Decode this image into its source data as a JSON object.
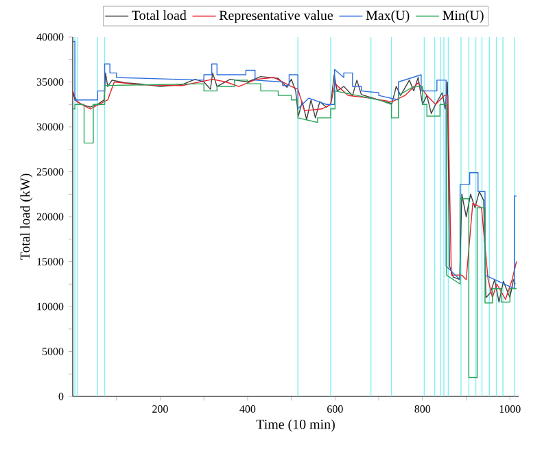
{
  "chart_data": {
    "type": "line",
    "xlabel": "Time (10 min)",
    "ylabel": "Total load (kW)",
    "xlim": [
      0,
      1020
    ],
    "ylim": [
      0,
      40000
    ],
    "xticks": [
      {
        "value": 100,
        "label": null
      },
      200,
      {
        "value": 300,
        "label": null
      },
      400,
      {
        "value": 500,
        "label": null
      },
      600,
      {
        "value": 700,
        "label": null
      },
      800,
      {
        "value": 900,
        "label": null
      },
      1000
    ],
    "yticks": [
      0,
      {
        "value": 2500,
        "label": null
      },
      5000,
      {
        "value": 7500,
        "label": null
      },
      10000,
      {
        "value": 12500,
        "label": null
      },
      15000,
      {
        "value": 17500,
        "label": null
      },
      20000,
      {
        "value": 22500,
        "label": null
      },
      25000,
      {
        "value": 27500,
        "label": null
      },
      30000,
      {
        "value": 32500,
        "label": null
      },
      35000,
      {
        "value": 37500,
        "label": null
      },
      40000
    ],
    "grid": false,
    "legend": "top",
    "marker": "none",
    "line_style": "solid",
    "series": [
      {
        "name": "Total load",
        "color": "#404040",
        "x": [
          0,
          5,
          20,
          40,
          60,
          72,
          75,
          80,
          90,
          120,
          150,
          200,
          250,
          280,
          300,
          315,
          320,
          330,
          360,
          400,
          430,
          470,
          490,
          500,
          510,
          516,
          525,
          535,
          545,
          555,
          565,
          580,
          590,
          598,
          605,
          620,
          640,
          650,
          660,
          700,
          730,
          740,
          750,
          770,
          780,
          790,
          800,
          810,
          820,
          830,
          845,
          852,
          857,
          862,
          870,
          885,
          890,
          900,
          910,
          920,
          930,
          940,
          945,
          955,
          965,
          975,
          985,
          1000,
          1008,
          1012
        ],
        "values": [
          34000,
          33000,
          32500,
          32200,
          32600,
          33000,
          36000,
          34500,
          35200,
          34900,
          34800,
          34500,
          34700,
          35300,
          35000,
          34200,
          36000,
          34500,
          35300,
          35000,
          35600,
          35400,
          34400,
          35300,
          34000,
          31200,
          32800,
          30800,
          33000,
          31000,
          32800,
          32200,
          32500,
          35800,
          34000,
          34500,
          33500,
          35200,
          33600,
          33000,
          32600,
          34500,
          33500,
          35200,
          34000,
          35500,
          32500,
          33500,
          31500,
          32500,
          33800,
          32000,
          35000,
          14500,
          13300,
          13000,
          22500,
          20000,
          22500,
          21000,
          22800,
          21800,
          11000,
          11500,
          13000,
          10500,
          12800,
          11000,
          13000,
          12500
        ]
      },
      {
        "name": "Representative value",
        "color": "#e8202a",
        "x": [
          0,
          10,
          40,
          60,
          80,
          95,
          150,
          250,
          320,
          350,
          380,
          420,
          460,
          500,
          515,
          530,
          570,
          590,
          600,
          630,
          680,
          730,
          760,
          790,
          810,
          830,
          850,
          858,
          866,
          890,
          900,
          915,
          935,
          950,
          960,
          970,
          990,
          1005,
          1015
        ],
        "values": [
          34000,
          32800,
          32000,
          32500,
          33000,
          35000,
          34700,
          34600,
          35300,
          35000,
          34500,
          35300,
          35500,
          34500,
          34200,
          31800,
          32000,
          32500,
          34800,
          33500,
          33200,
          32800,
          33500,
          34900,
          33500,
          32500,
          33500,
          33500,
          13500,
          13500,
          13000,
          21500,
          21000,
          13000,
          11000,
          12500,
          10800,
          13000,
          15000
        ]
      },
      {
        "name": "Max(U)",
        "color": "#2f6fdc",
        "x": [
          0,
          5,
          5,
          57,
          57,
          73,
          73,
          85,
          85,
          100,
          100,
          300,
          300,
          318,
          318,
          330,
          330,
          396,
          396,
          417,
          417,
          480,
          480,
          495,
          495,
          515,
          515,
          540,
          540,
          580,
          580,
          599,
          599,
          620,
          620,
          640,
          640,
          660,
          660,
          700,
          700,
          745,
          745,
          797,
          797,
          833,
          833,
          854,
          854,
          886,
          886,
          908,
          908,
          927,
          927,
          943,
          943,
          1010,
          1010,
          1015
        ],
        "values": [
          39500,
          39500,
          33000,
          33000,
          34000,
          34000,
          37000,
          37000,
          36000,
          36000,
          35500,
          35200,
          35800,
          35800,
          37000,
          37000,
          35800,
          35800,
          36300,
          36300,
          35200,
          35000,
          34600,
          34600,
          35800,
          35800,
          32000,
          33200,
          33200,
          32500,
          32500,
          32500,
          36400,
          35500,
          36000,
          36000,
          34500,
          34500,
          34000,
          33800,
          33500,
          33000,
          35000,
          35800,
          34000,
          34000,
          35200,
          35200,
          14500,
          13000,
          23600,
          23600,
          24900,
          24900,
          22800,
          22800,
          13500,
          12000,
          22300,
          22300
        ]
      },
      {
        "name": "Min(U)",
        "color": "#2aa65a",
        "x": [
          0,
          5,
          5,
          26,
          26,
          47,
          47,
          73,
          73,
          300,
          300,
          330,
          330,
          370,
          370,
          400,
          400,
          430,
          430,
          470,
          470,
          500,
          500,
          515,
          515,
          560,
          560,
          590,
          590,
          600,
          600,
          650,
          650,
          700,
          700,
          729,
          729,
          745,
          745,
          780,
          780,
          800,
          800,
          810,
          810,
          840,
          840,
          855,
          855,
          886,
          886,
          906,
          906,
          925,
          925,
          943,
          943,
          960,
          960,
          980,
          980,
          1000,
          1000,
          1015
        ],
        "values": [
          32000,
          32000,
          32500,
          32500,
          28200,
          28200,
          32500,
          32500,
          34600,
          34800,
          34000,
          34000,
          34500,
          34500,
          35200,
          35200,
          34800,
          34800,
          34000,
          34000,
          33500,
          33500,
          33000,
          33000,
          31000,
          30500,
          31000,
          31000,
          32000,
          32000,
          34000,
          33500,
          33500,
          33000,
          33000,
          32500,
          31000,
          31000,
          33500,
          34500,
          34500,
          34500,
          32500,
          32500,
          31200,
          31200,
          32500,
          32500,
          13500,
          12500,
          22000,
          22000,
          2100,
          2100,
          21000,
          21000,
          10400,
          10400,
          12000,
          12000,
          10500,
          10500,
          12000,
          12000
        ]
      }
    ],
    "ref_lines": [
      {
        "axis": "x",
        "value": 5,
        "color": "#7ff0f2"
      },
      {
        "axis": "x",
        "value": 11,
        "color": "#7ff0f2"
      },
      {
        "axis": "x",
        "value": 57,
        "color": "#7ff0f2"
      },
      {
        "axis": "x",
        "value": 73,
        "color": "#7ff0f2"
      },
      {
        "axis": "x",
        "value": 515,
        "color": "#7ff0f2"
      },
      {
        "axis": "x",
        "value": 590,
        "color": "#7ff0f2"
      },
      {
        "axis": "x",
        "value": 682,
        "color": "#7ff0f2"
      },
      {
        "axis": "x",
        "value": 729,
        "color": "#7ff0f2"
      },
      {
        "axis": "x",
        "value": 804,
        "color": "#7ff0f2"
      },
      {
        "axis": "x",
        "value": 828,
        "color": "#7ff0f2"
      },
      {
        "axis": "x",
        "value": 841,
        "color": "#7ff0f2"
      },
      {
        "axis": "x",
        "value": 849,
        "color": "#7ff0f2"
      },
      {
        "axis": "x",
        "value": 859,
        "color": "#7ff0f2"
      },
      {
        "axis": "x",
        "value": 888,
        "color": "#7ff0f2"
      },
      {
        "axis": "x",
        "value": 906,
        "color": "#7ff0f2"
      },
      {
        "axis": "x",
        "value": 922,
        "color": "#7ff0f2"
      },
      {
        "axis": "x",
        "value": 936,
        "color": "#7ff0f2"
      },
      {
        "axis": "x",
        "value": 953,
        "color": "#7ff0f2"
      },
      {
        "axis": "x",
        "value": 969,
        "color": "#7ff0f2"
      },
      {
        "axis": "x",
        "value": 984,
        "color": "#7ff0f2"
      },
      {
        "axis": "x",
        "value": 1011,
        "color": "#7ff0f2"
      }
    ]
  }
}
